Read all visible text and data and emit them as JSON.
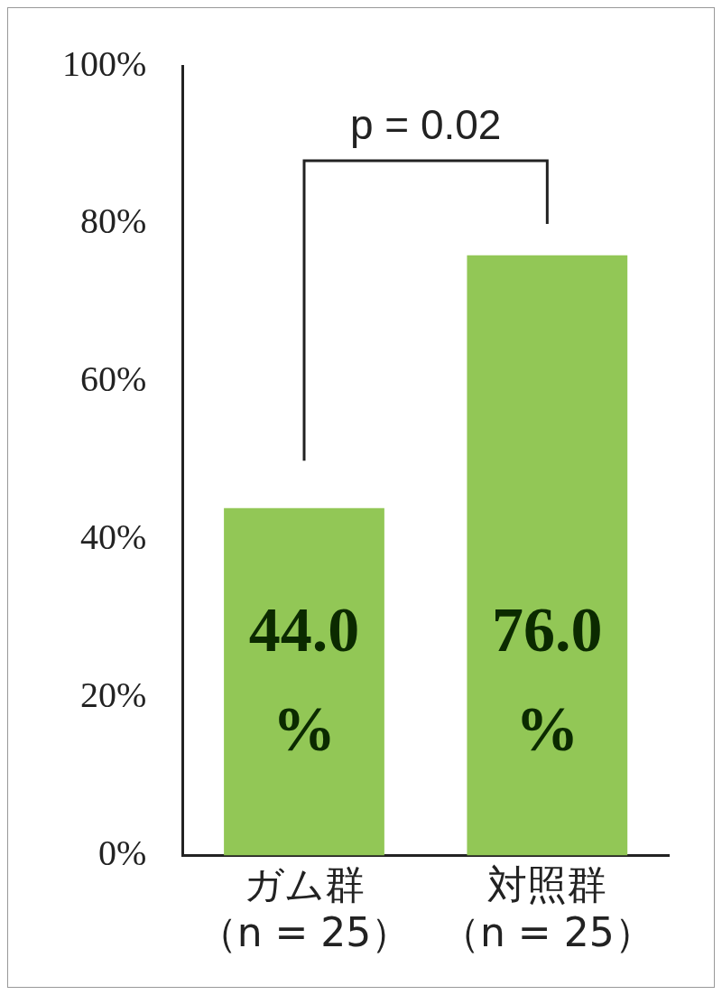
{
  "chart_data": {
    "type": "bar",
    "categories": [
      "ガム群（n = 25）",
      "対照群（n = 25）"
    ],
    "values": [
      44.0,
      76.0
    ],
    "color": "#92c756",
    "value_labels": [
      "44.0%",
      "76.0%"
    ],
    "ylim": [
      0,
      100
    ],
    "yticks": [
      {
        "value": 0,
        "label": "0%"
      },
      {
        "value": 20,
        "label": "20%"
      },
      {
        "value": 40,
        "label": "40%"
      },
      {
        "value": 60,
        "label": "60%"
      },
      {
        "value": 80,
        "label": "80%"
      },
      {
        "value": 100,
        "label": "100%"
      }
    ],
    "annotations": [
      "p = 0.02"
    ],
    "grid": false,
    "legend": false
  }
}
